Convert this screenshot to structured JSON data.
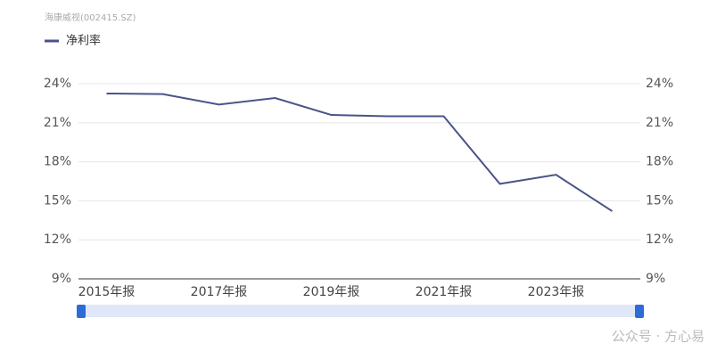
{
  "chart_data": {
    "type": "line",
    "title": "海康威视(002415.SZ)",
    "categories": [
      "2015年报",
      null,
      "2017年报",
      null,
      "2019年报",
      null,
      "2021年报",
      null,
      "2023年报",
      null
    ],
    "series": [
      {
        "name": "净利率",
        "color": "#4a5488",
        "values": [
          23.25,
          23.2,
          22.4,
          22.9,
          21.6,
          21.5,
          21.5,
          16.3,
          17.0,
          14.2
        ]
      }
    ],
    "ylim": [
      9,
      24
    ],
    "yticks": [
      {
        "value": 9,
        "label": "9%"
      },
      {
        "value": 12,
        "label": "12%"
      },
      {
        "value": 15,
        "label": "15%"
      },
      {
        "value": 18,
        "label": "18%"
      },
      {
        "value": 21,
        "label": "21%"
      },
      {
        "value": 24,
        "label": "24%"
      }
    ],
    "y2lim": [
      9,
      24
    ],
    "y2ticks": [
      {
        "value": 9,
        "label": "9%"
      },
      {
        "value": 12,
        "label": "12%"
      },
      {
        "value": 15,
        "label": "15%"
      },
      {
        "value": 18,
        "label": "18%"
      },
      {
        "value": 21,
        "label": "21%"
      },
      {
        "value": 24,
        "label": "24%"
      }
    ],
    "grid": true,
    "legend": "top-left",
    "watermark": "公众号 · 方心易"
  }
}
